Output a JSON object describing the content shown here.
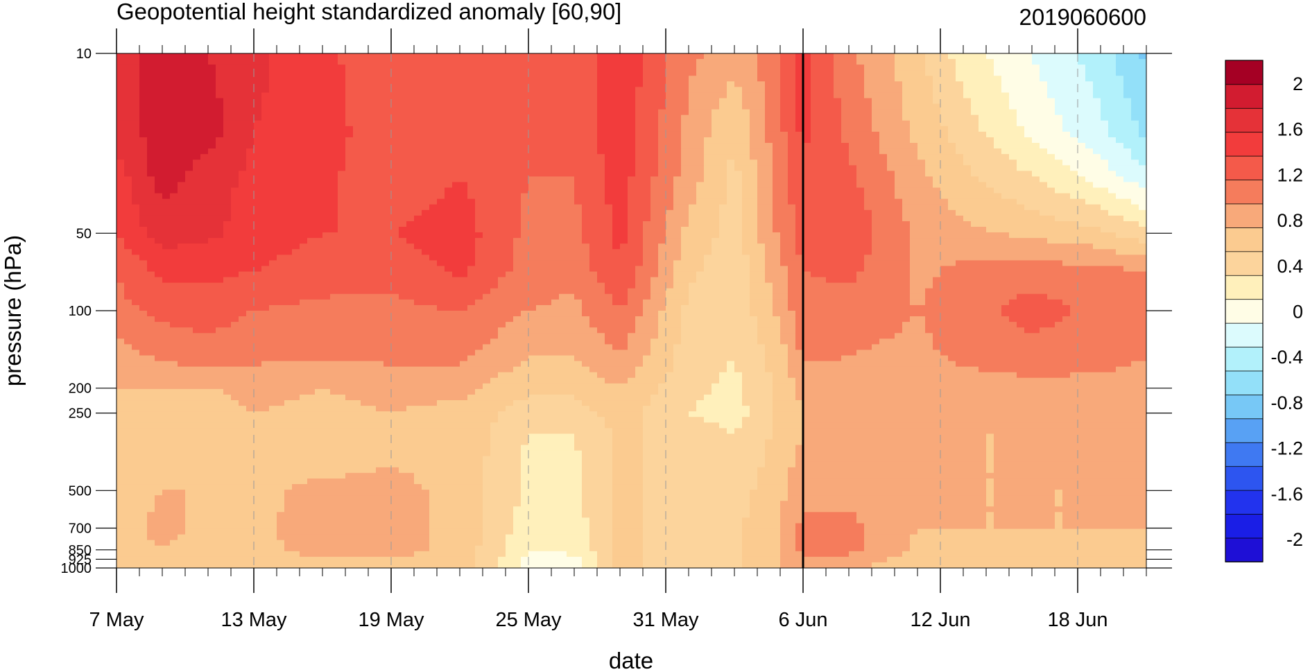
{
  "chart_data": {
    "type": "heatmap",
    "title": "Geopotential height standardized anomaly [60,90]",
    "subtitle": "2019060600",
    "xlabel": "date",
    "ylabel": "pressure (hPa)",
    "x_start": "2019-05-07",
    "x_end": "2019-06-21",
    "x_tick_labels": [
      {
        "date": "2019-05-07",
        "label": "7 May"
      },
      {
        "date": "2019-05-13",
        "label": "13 May"
      },
      {
        "date": "2019-05-19",
        "label": "19 May"
      },
      {
        "date": "2019-05-25",
        "label": "25 May"
      },
      {
        "date": "2019-05-31",
        "label": "31 May"
      },
      {
        "date": "2019-06-06",
        "label": "6 Jun"
      },
      {
        "date": "2019-06-12",
        "label": "12 Jun"
      },
      {
        "date": "2019-06-18",
        "label": "18 Jun"
      }
    ],
    "marker_date": "2019-06-06",
    "y_scale": "log",
    "y_reversed": true,
    "ylim": [
      1000,
      10
    ],
    "y_ticks": [
      10,
      50,
      100,
      200,
      250,
      500,
      700,
      850,
      925,
      1000
    ],
    "colorbar": {
      "levels": [
        -2.2,
        -2,
        -1.8,
        -1.6,
        -1.4,
        -1.2,
        -1,
        -0.8,
        -0.6,
        -0.4,
        -0.2,
        0,
        0.2,
        0.4,
        0.6,
        0.8,
        1,
        1.2,
        1.4,
        1.6,
        1.8,
        2,
        2.2
      ],
      "labels": [
        "2",
        "1.6",
        "1.2",
        "0.8",
        "0.4",
        "0",
        "-0.4",
        "-0.8",
        "-1.2",
        "-1.6",
        "-2"
      ],
      "label_values": [
        2,
        1.6,
        1.2,
        0.8,
        0.4,
        0,
        -0.4,
        -0.8,
        -1.2,
        -1.6,
        -2
      ],
      "colors": [
        "#1e0fd6",
        "#1a1ee6",
        "#2233ee",
        "#2d55f0",
        "#3f79f2",
        "#58a1f4",
        "#77c8f6",
        "#93e0f9",
        "#b2f1fb",
        "#dcfbfd",
        "#fffde6",
        "#fff0bb",
        "#fcd49c",
        "#fbcb90",
        "#f8a97a",
        "#f57c5c",
        "#f45a4a",
        "#f23c3c",
        "#e53238",
        "#d21c30",
        "#a50024"
      ]
    },
    "pressure_levels": [
      10,
      20,
      30,
      50,
      70,
      100,
      150,
      200,
      250,
      300,
      400,
      500,
      700,
      850,
      925,
      1000
    ],
    "anchors": [
      {
        "date": "2019-05-07",
        "values": [
          1.55,
          1.5,
          1.3,
          1.2,
          1.0,
          0.95,
          0.7,
          0.6,
          0.55,
          0.5,
          0.45,
          0.45,
          0.45,
          0.45,
          0.45,
          0.45
        ]
      },
      {
        "date": "2019-05-09",
        "values": [
          1.65,
          1.7,
          1.7,
          1.5,
          1.25,
          1.05,
          0.85,
          0.6,
          0.55,
          0.5,
          0.55,
          0.6,
          0.7,
          0.6,
          0.5,
          0.45
        ]
      },
      {
        "date": "2019-05-11",
        "values": [
          1.6,
          1.7,
          1.5,
          1.45,
          1.25,
          1.1,
          0.9,
          0.6,
          0.5,
          0.5,
          0.55,
          0.6,
          0.5,
          0.5,
          0.45,
          0.4
        ]
      },
      {
        "date": "2019-05-13",
        "values": [
          1.45,
          1.4,
          1.35,
          1.3,
          1.2,
          1.0,
          0.85,
          0.65,
          0.6,
          0.55,
          0.55,
          0.55,
          0.55,
          0.55,
          0.5,
          0.5
        ]
      },
      {
        "date": "2019-05-16",
        "values": [
          1.25,
          1.3,
          1.25,
          1.2,
          1.1,
          0.95,
          0.85,
          0.6,
          0.55,
          0.5,
          0.55,
          0.65,
          0.7,
          0.65,
          0.6,
          0.5
        ]
      },
      {
        "date": "2019-05-19",
        "values": [
          1.05,
          1.05,
          1.05,
          1.2,
          1.05,
          0.95,
          0.85,
          0.65,
          0.6,
          0.6,
          0.6,
          0.65,
          0.65,
          0.65,
          0.6,
          0.55
        ]
      },
      {
        "date": "2019-05-22",
        "values": [
          1.05,
          1.1,
          1.2,
          1.3,
          1.25,
          1.0,
          0.85,
          0.65,
          0.55,
          0.55,
          0.55,
          0.55,
          0.55,
          0.55,
          0.55,
          0.5
        ]
      },
      {
        "date": "2019-05-25",
        "values": [
          1.05,
          1.05,
          1.0,
          0.95,
          0.9,
          0.8,
          0.6,
          0.45,
          0.3,
          0.2,
          0.15,
          0.15,
          0.1,
          0.0,
          -0.05,
          -0.1
        ]
      },
      {
        "date": "2019-05-27",
        "values": [
          1.05,
          1.05,
          1.0,
          0.95,
          0.85,
          0.75,
          0.6,
          0.45,
          0.3,
          0.2,
          0.15,
          0.15,
          0.1,
          0.05,
          -0.05,
          -0.1
        ]
      },
      {
        "date": "2019-05-29",
        "values": [
          1.35,
          1.35,
          1.3,
          1.25,
          1.2,
          1.0,
          0.8,
          0.6,
          0.5,
          0.45,
          0.45,
          0.45,
          0.45,
          0.45,
          0.45,
          0.45
        ]
      },
      {
        "date": "2019-06-01",
        "values": [
          0.85,
          0.75,
          0.7,
          0.55,
          0.45,
          0.35,
          0.3,
          0.25,
          0.2,
          0.3,
          0.3,
          0.3,
          0.3,
          0.3,
          0.3,
          0.3
        ]
      },
      {
        "date": "2019-06-03",
        "values": [
          0.7,
          0.4,
          0.35,
          0.3,
          0.25,
          0.25,
          0.2,
          0.15,
          0.1,
          0.2,
          0.25,
          0.3,
          0.35,
          0.35,
          0.35,
          0.35
        ]
      },
      {
        "date": "2019-06-05",
        "values": [
          0.95,
          0.95,
          0.9,
          0.85,
          0.75,
          0.65,
          0.5,
          0.45,
          0.45,
          0.45,
          0.5,
          0.55,
          0.6,
          0.6,
          0.6,
          0.6
        ]
      },
      {
        "date": "2019-06-06",
        "values": [
          1.3,
          1.25,
          1.15,
          1.1,
          1.0,
          0.95,
          0.85,
          0.65,
          0.6,
          0.6,
          0.7,
          0.75,
          0.85,
          0.85,
          0.8,
          0.75
        ]
      },
      {
        "date": "2019-06-08",
        "values": [
          0.85,
          0.95,
          1.05,
          1.15,
          1.05,
          0.9,
          0.8,
          0.7,
          0.65,
          0.65,
          0.7,
          0.75,
          0.85,
          0.85,
          0.75,
          0.65
        ]
      },
      {
        "date": "2019-06-11",
        "values": [
          0.45,
          0.55,
          0.65,
          0.75,
          0.75,
          0.8,
          0.75,
          0.65,
          0.6,
          0.6,
          0.6,
          0.6,
          0.6,
          0.55,
          0.5,
          0.45
        ]
      },
      {
        "date": "2019-06-13",
        "values": [
          0.1,
          0.3,
          0.45,
          0.65,
          0.85,
          0.9,
          0.85,
          0.7,
          0.65,
          0.6,
          0.6,
          0.6,
          0.6,
          0.55,
          0.5,
          0.45
        ]
      },
      {
        "date": "2019-06-16",
        "values": [
          -0.2,
          -0.05,
          0.2,
          0.55,
          0.9,
          1.1,
          0.9,
          0.75,
          0.65,
          0.6,
          0.6,
          0.6,
          0.6,
          0.55,
          0.5,
          0.5
        ]
      },
      {
        "date": "2019-06-19",
        "values": [
          -0.5,
          -0.35,
          -0.1,
          0.45,
          0.85,
          0.95,
          0.85,
          0.75,
          0.7,
          0.65,
          0.65,
          0.6,
          0.6,
          0.55,
          0.55,
          0.55
        ]
      },
      {
        "date": "2019-06-21",
        "values": [
          -0.85,
          -0.65,
          -0.35,
          0.25,
          0.8,
          0.85,
          0.8,
          0.75,
          0.7,
          0.65,
          0.65,
          0.6,
          0.6,
          0.55,
          0.55,
          0.55
        ]
      }
    ]
  }
}
